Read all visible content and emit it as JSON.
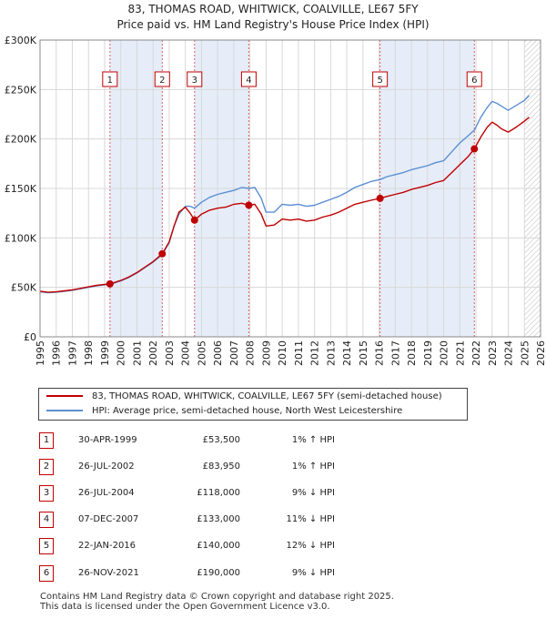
{
  "title_line1": "83, THOMAS ROAD, WHITWICK, COALVILLE, LE67 5FY",
  "title_line2": "Price paid vs. HM Land Registry's House Price Index (HPI)",
  "chart_data": {
    "type": "line",
    "title": "Price paid vs. HM Land Registry's House Price Index (HPI)",
    "xlabel": "",
    "ylabel": "",
    "xlim": [
      1995,
      2026
    ],
    "ylim": [
      0,
      300000
    ],
    "x_ticks": [
      "1995",
      "1996",
      "1997",
      "1998",
      "1999",
      "2000",
      "2001",
      "2002",
      "2003",
      "2004",
      "2005",
      "2006",
      "2007",
      "2008",
      "2009",
      "2010",
      "2011",
      "2012",
      "2013",
      "2014",
      "2015",
      "2016",
      "2017",
      "2018",
      "2019",
      "2020",
      "2021",
      "2022",
      "2023",
      "2024",
      "2025",
      "2026"
    ],
    "y_ticks": [
      {
        "value": 0,
        "label": "£0"
      },
      {
        "value": 50000,
        "label": "£50K"
      },
      {
        "value": 100000,
        "label": "£100K"
      },
      {
        "value": 150000,
        "label": "£150K"
      },
      {
        "value": 200000,
        "label": "£200K"
      },
      {
        "value": 250000,
        "label": "£250K"
      },
      {
        "value": 300000,
        "label": "£300K"
      }
    ],
    "series": [
      {
        "name": "83, THOMAS ROAD, WHITWICK, COALVILLE, LE67 5FY (semi-detached house)",
        "color": "#c00000",
        "x": [
          1995.0,
          1995.5,
          1996.0,
          1996.5,
          1997.0,
          1997.5,
          1998.0,
          1998.5,
          1999.0,
          1999.33,
          2000.0,
          2000.5,
          2001.0,
          2001.5,
          2002.0,
          2002.57,
          2003.0,
          2003.3,
          2003.6,
          2004.0,
          2004.3,
          2004.57,
          2005.0,
          2005.5,
          2006.0,
          2006.5,
          2007.0,
          2007.5,
          2007.93,
          2008.3,
          2008.7,
          2009.0,
          2009.5,
          2010.0,
          2010.5,
          2011.0,
          2011.5,
          2012.0,
          2012.5,
          2013.0,
          2013.5,
          2014.0,
          2014.5,
          2015.0,
          2015.5,
          2016.06,
          2016.5,
          2017.0,
          2017.5,
          2018.0,
          2018.5,
          2019.0,
          2019.5,
          2020.0,
          2020.5,
          2021.0,
          2021.5,
          2021.9,
          2022.3,
          2022.7,
          2023.0,
          2023.3,
          2023.6,
          2024.0,
          2024.5,
          2025.0,
          2025.3
        ],
        "values": [
          46000,
          45000,
          45500,
          46500,
          47500,
          49000,
          50500,
          52000,
          53000,
          53500,
          57000,
          60500,
          65000,
          70500,
          76000,
          83950,
          96000,
          112000,
          126000,
          131000,
          125000,
          118000,
          124000,
          128000,
          130000,
          131000,
          134000,
          135000,
          133000,
          134000,
          124000,
          112000,
          113000,
          119000,
          118000,
          119000,
          117000,
          118000,
          121000,
          123000,
          126000,
          130000,
          134000,
          136000,
          138000,
          140000,
          142000,
          144000,
          146000,
          149000,
          151000,
          153000,
          156000,
          158000,
          166000,
          174000,
          182000,
          190000,
          202000,
          212000,
          217000,
          214000,
          210000,
          207000,
          212000,
          218000,
          222000
        ]
      },
      {
        "name": "HPI: Average price, semi-detached house, North West Leicestershire",
        "color": "#5b8fd4",
        "x": [
          1995.0,
          1995.5,
          1996.0,
          1996.5,
          1997.0,
          1997.5,
          1998.0,
          1998.5,
          1999.0,
          1999.33,
          2000.0,
          2000.5,
          2001.0,
          2001.5,
          2002.0,
          2002.57,
          2003.0,
          2003.3,
          2003.6,
          2004.0,
          2004.3,
          2004.57,
          2005.0,
          2005.5,
          2006.0,
          2006.5,
          2007.0,
          2007.5,
          2007.93,
          2008.3,
          2008.7,
          2009.0,
          2009.5,
          2010.0,
          2010.5,
          2011.0,
          2011.5,
          2012.0,
          2012.5,
          2013.0,
          2013.5,
          2014.0,
          2014.5,
          2015.0,
          2015.5,
          2016.06,
          2016.5,
          2017.0,
          2017.5,
          2018.0,
          2018.5,
          2019.0,
          2019.5,
          2020.0,
          2020.5,
          2021.0,
          2021.5,
          2021.9,
          2022.3,
          2022.7,
          2023.0,
          2023.3,
          2023.6,
          2024.0,
          2024.5,
          2025.0,
          2025.3
        ],
        "values": [
          45500,
          44500,
          45000,
          46000,
          47000,
          48500,
          50000,
          51500,
          52500,
          53000,
          56500,
          60000,
          64500,
          70000,
          75500,
          83100,
          95000,
          112000,
          124000,
          132000,
          132000,
          130000,
          136000,
          141000,
          144000,
          146000,
          148000,
          151000,
          150000,
          151000,
          140000,
          126000,
          126000,
          134000,
          133000,
          134000,
          132000,
          133000,
          136000,
          139000,
          142000,
          146000,
          151000,
          154000,
          157000,
          159000,
          162000,
          164000,
          166000,
          169000,
          171000,
          173000,
          176000,
          178000,
          187000,
          196000,
          203000,
          209000,
          222000,
          232000,
          238000,
          236000,
          233000,
          229000,
          234000,
          239000,
          244000
        ]
      }
    ],
    "transactions": [
      {
        "n": "1",
        "date": "30-APR-1999",
        "x": 1999.33,
        "price": 53500,
        "price_label": "£53,500",
        "hpi": "1% ↑ HPI"
      },
      {
        "n": "2",
        "date": "26-JUL-2002",
        "x": 2002.57,
        "price": 83950,
        "price_label": "£83,950",
        "hpi": "1% ↑ HPI"
      },
      {
        "n": "3",
        "date": "26-JUL-2004",
        "x": 2004.57,
        "price": 118000,
        "price_label": "£118,000",
        "hpi": "9% ↓ HPI"
      },
      {
        "n": "4",
        "date": "07-DEC-2007",
        "x": 2007.93,
        "price": 133000,
        "price_label": "£133,000",
        "hpi": "11% ↓ HPI"
      },
      {
        "n": "5",
        "date": "22-JAN-2016",
        "x": 2016.06,
        "price": 140000,
        "price_label": "£140,000",
        "hpi": "12% ↓ HPI"
      },
      {
        "n": "6",
        "date": "26-NOV-2021",
        "x": 2021.9,
        "price": 190000,
        "price_label": "£190,000",
        "hpi": "9% ↓ HPI"
      }
    ],
    "shaded_spans": [
      [
        1999.33,
        2002.57
      ],
      [
        2004.57,
        2007.93
      ],
      [
        2016.06,
        2021.9
      ]
    ],
    "hatched_from": 2025.0
  },
  "legend": {
    "red_label": "83, THOMAS ROAD, WHITWICK, COALVILLE, LE67 5FY (semi-detached house)",
    "blue_label": "HPI: Average price, semi-detached house, North West Leicestershire",
    "red_color": "#c00000",
    "blue_color": "#5b8fd4"
  },
  "footer": {
    "line1": "Contains HM Land Registry data © Crown copyright and database right 2025.",
    "line2": "This data is licensed under the Open Government Licence v3.0."
  }
}
